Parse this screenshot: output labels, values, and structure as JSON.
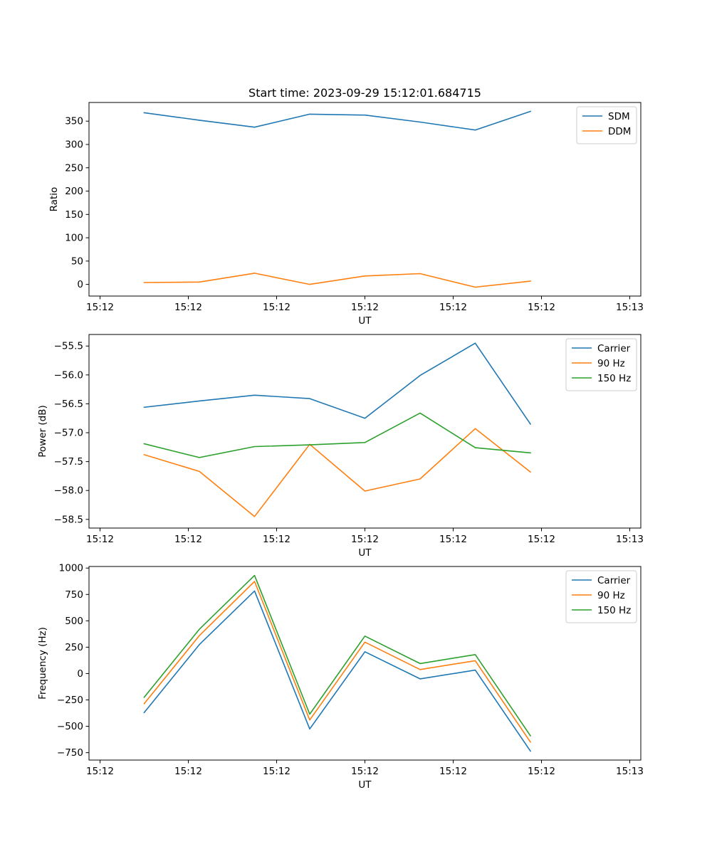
{
  "figure": {
    "title": "Start time: 2023-09-29 15:12:01.684715"
  },
  "colors": {
    "blue": "#1f77b4",
    "orange": "#ff7f0e",
    "green": "#2ca02c",
    "axis": "#000000",
    "legend_border": "#cccccc"
  },
  "chart_data": [
    {
      "type": "line",
      "title": "Start time: 2023-09-29 15:12:01.684715",
      "xlabel": "UT",
      "ylabel": "Ratio",
      "x": [
        1,
        2,
        3,
        4,
        5,
        6,
        7,
        8
      ],
      "xlim": [
        0,
        10
      ],
      "x_ticks": [
        0.2,
        1.8,
        3.4,
        5.0,
        6.6,
        8.2,
        9.8
      ],
      "x_tick_labels": [
        "15:12",
        "15:12",
        "15:12",
        "15:12",
        "15:12",
        "15:12",
        "15:13"
      ],
      "ylim": [
        -25,
        390
      ],
      "y_ticks": [
        0,
        50,
        100,
        150,
        200,
        250,
        300,
        350
      ],
      "y_tick_labels": [
        "0",
        "50",
        "100",
        "150",
        "200",
        "250",
        "300",
        "350"
      ],
      "legend_position": "top-right",
      "series": [
        {
          "name": "SDM",
          "color": "#1f77b4",
          "values": [
            368,
            352,
            337,
            365,
            363,
            348,
            331,
            371
          ]
        },
        {
          "name": "DDM",
          "color": "#ff7f0e",
          "values": [
            4,
            5,
            24,
            0,
            18,
            23,
            -6,
            7
          ]
        }
      ]
    },
    {
      "type": "line",
      "title": "",
      "xlabel": "UT",
      "ylabel": "Power (dB)",
      "x": [
        1,
        2,
        3,
        4,
        5,
        6,
        7,
        8
      ],
      "xlim": [
        0,
        10
      ],
      "x_ticks": [
        0.2,
        1.8,
        3.4,
        5.0,
        6.6,
        8.2,
        9.8
      ],
      "x_tick_labels": [
        "15:12",
        "15:12",
        "15:12",
        "15:12",
        "15:12",
        "15:12",
        "15:13"
      ],
      "ylim": [
        -58.65,
        -55.3
      ],
      "y_ticks": [
        -58.5,
        -58.0,
        -57.5,
        -57.0,
        -56.5,
        -56.0,
        -55.5
      ],
      "y_tick_labels": [
        "−58.5",
        "−58.0",
        "−57.5",
        "−57.0",
        "−56.5",
        "−56.0",
        "−55.5"
      ],
      "legend_position": "top-right",
      "series": [
        {
          "name": "Carrier",
          "color": "#1f77b4",
          "values": [
            -56.56,
            -56.45,
            -56.35,
            -56.41,
            -56.75,
            -56.01,
            -55.45,
            -56.85
          ]
        },
        {
          "name": "90 Hz",
          "color": "#ff7f0e",
          "values": [
            -57.38,
            -57.67,
            -58.45,
            -57.2,
            -58.01,
            -57.8,
            -56.93,
            -57.68
          ]
        },
        {
          "name": "150 Hz",
          "color": "#2ca02c",
          "values": [
            -57.19,
            -57.43,
            -57.24,
            -57.21,
            -57.17,
            -56.66,
            -57.26,
            -57.35
          ]
        }
      ]
    },
    {
      "type": "line",
      "title": "",
      "xlabel": "UT",
      "ylabel": "Frequency (Hz)",
      "x": [
        1,
        2,
        3,
        4,
        5,
        6,
        7,
        8
      ],
      "xlim": [
        0,
        10
      ],
      "x_ticks": [
        0.2,
        1.8,
        3.4,
        5.0,
        6.6,
        8.2,
        9.8
      ],
      "x_tick_labels": [
        "15:12",
        "15:12",
        "15:12",
        "15:12",
        "15:12",
        "15:12",
        "15:13"
      ],
      "ylim": [
        -820,
        1015
      ],
      "y_ticks": [
        -750,
        -500,
        -250,
        0,
        250,
        500,
        750,
        1000
      ],
      "y_tick_labels": [
        "−750",
        "−500",
        "−250",
        "0",
        "250",
        "500",
        "750",
        "1000"
      ],
      "legend_position": "top-right",
      "series": [
        {
          "name": "Carrier",
          "color": "#1f77b4",
          "values": [
            -370,
            275,
            783,
            -525,
            207,
            -50,
            33,
            -735
          ]
        },
        {
          "name": "90 Hz",
          "color": "#ff7f0e",
          "values": [
            -285,
            360,
            873,
            -440,
            298,
            38,
            122,
            -650
          ]
        },
        {
          "name": "150 Hz",
          "color": "#2ca02c",
          "values": [
            -225,
            420,
            930,
            -385,
            355,
            95,
            180,
            -590
          ]
        }
      ]
    }
  ]
}
